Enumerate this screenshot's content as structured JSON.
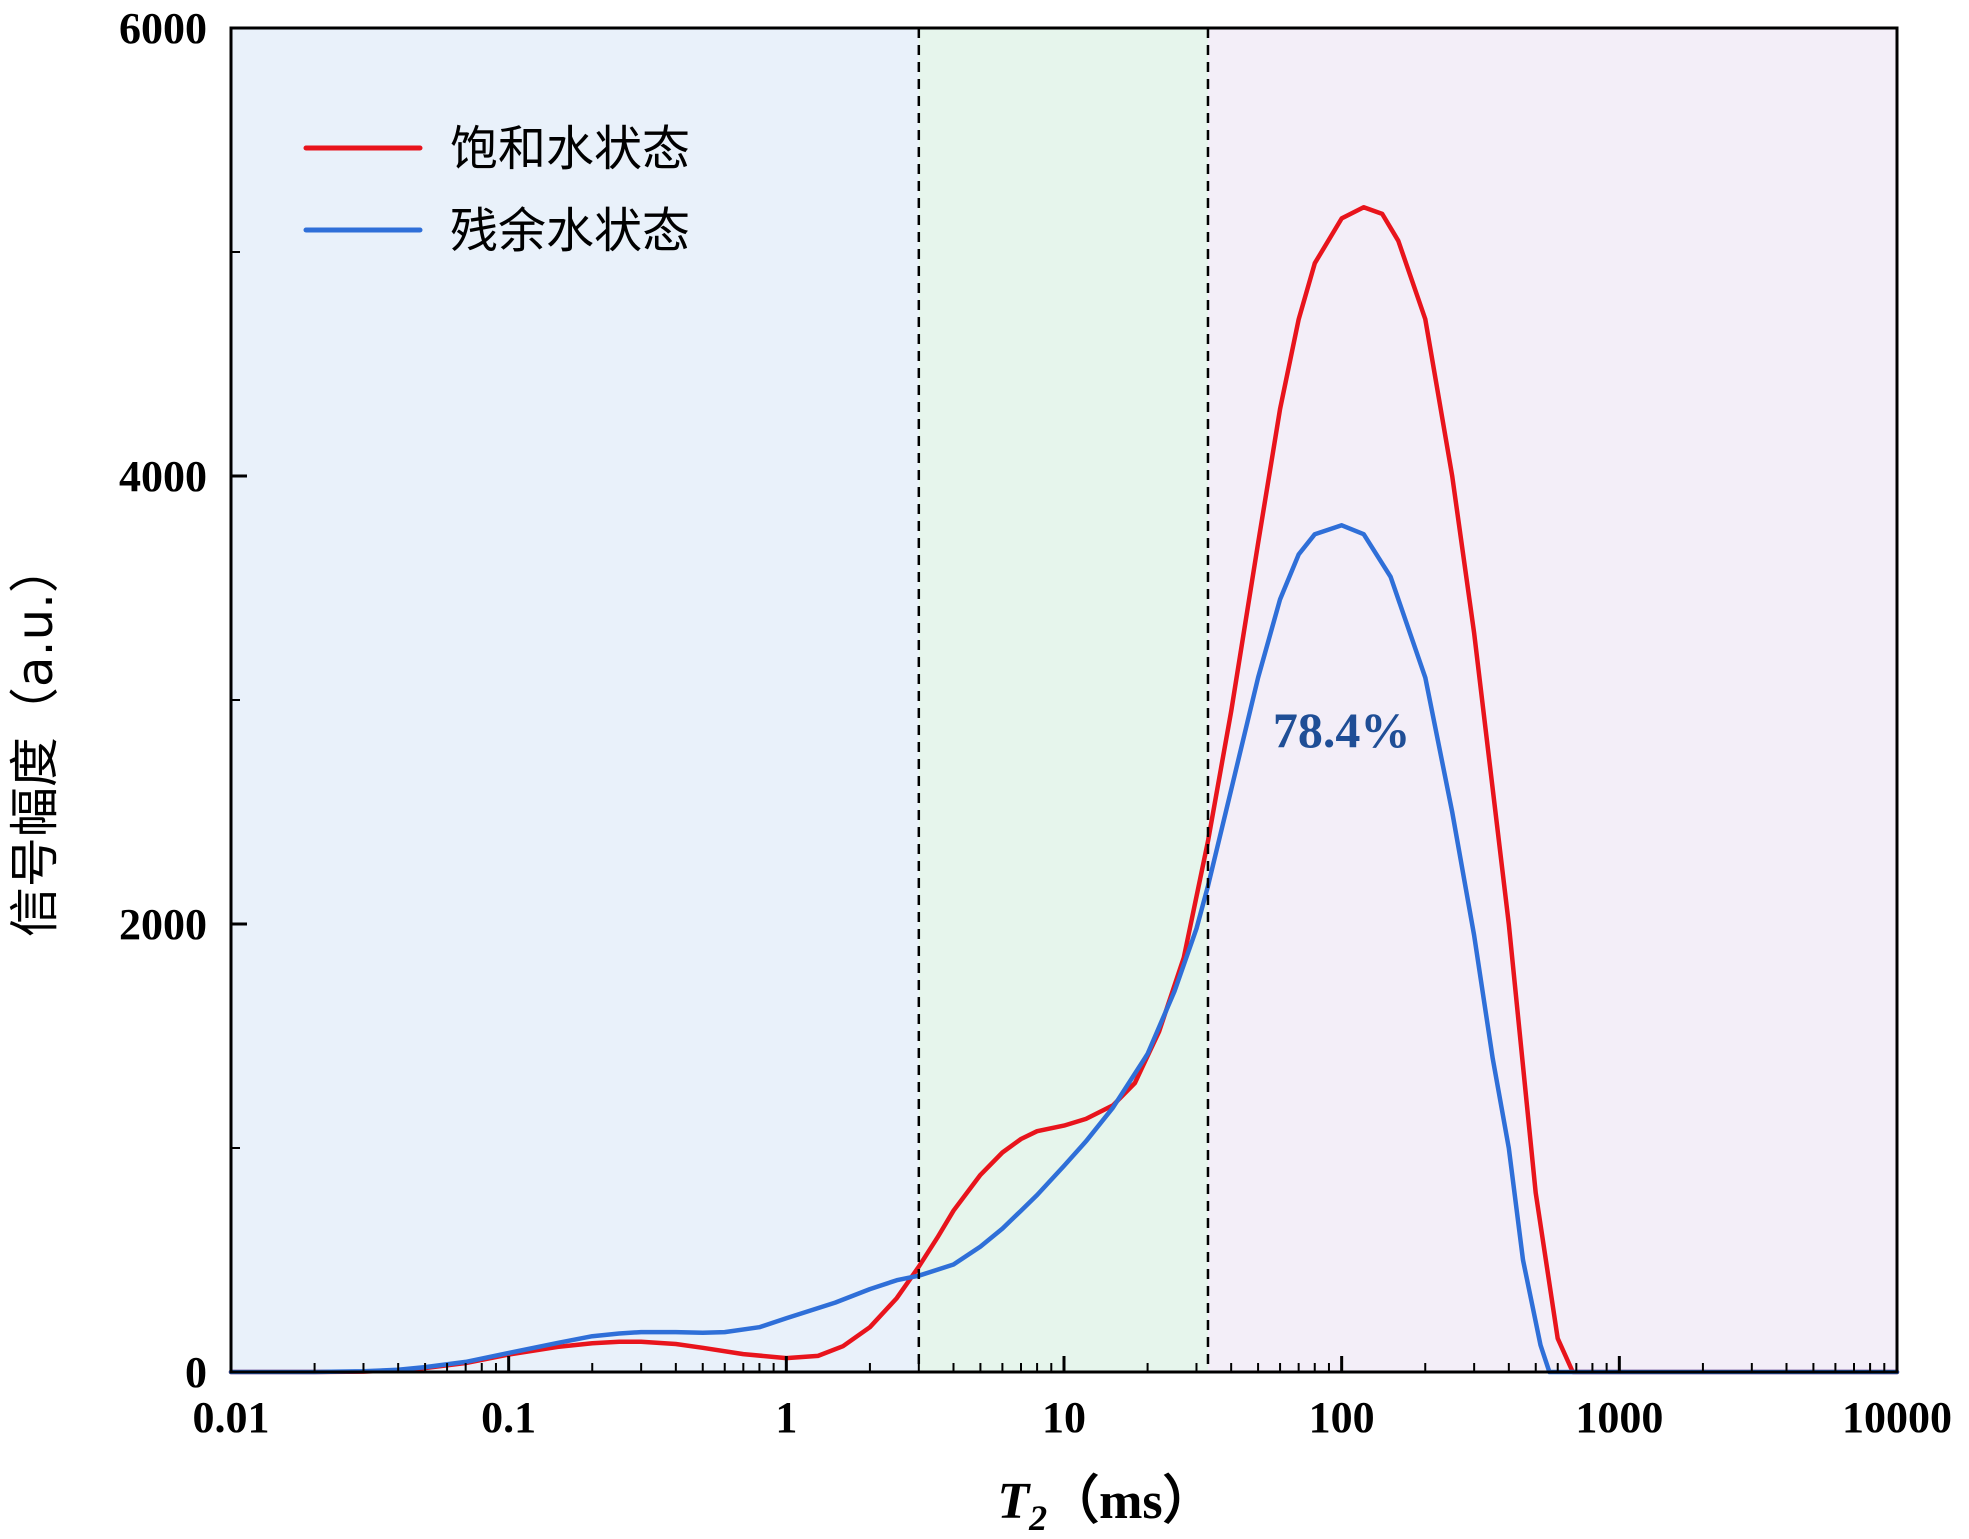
{
  "chart_data": {
    "type": "line",
    "title": "",
    "xlabel": "T2（ms）",
    "xlabel_main": "T",
    "xlabel_sub": "2",
    "xlabel_unit": "（ms）",
    "ylabel": "信号幅度（a.u.）",
    "xscale": "log",
    "xlim": [
      0.01,
      10000
    ],
    "ylim": [
      0,
      6000
    ],
    "x_ticks": [
      0.01,
      0.1,
      1,
      10,
      100,
      1000,
      10000
    ],
    "x_tick_labels": [
      "0.01",
      "0.1",
      "1",
      "10",
      "100",
      "1000",
      "10000"
    ],
    "y_ticks": [
      0,
      2000,
      4000,
      6000
    ],
    "y_tick_labels": [
      "0",
      "2000",
      "4000",
      "6000"
    ],
    "y_minor_ticks": [
      1000,
      3000,
      5000
    ],
    "grid": false,
    "legend_position": "top-left",
    "regions": [
      {
        "from": 0.01,
        "to": 3,
        "color": "#e9f1fa"
      },
      {
        "from": 3,
        "to": 33,
        "color": "#e6f5ec"
      },
      {
        "from": 33,
        "to": 10000,
        "color": "#f3eef8"
      }
    ],
    "vlines": [
      3,
      33
    ],
    "annotation": {
      "text": "78.4%",
      "x": 100,
      "y": 2870,
      "color": "#1f4e96"
    },
    "series": [
      {
        "name": "饱和水状态",
        "color": "#e8141c",
        "points": [
          [
            0.01,
            0
          ],
          [
            0.02,
            0
          ],
          [
            0.03,
            2
          ],
          [
            0.04,
            8
          ],
          [
            0.05,
            18
          ],
          [
            0.07,
            40
          ],
          [
            0.1,
            78
          ],
          [
            0.15,
            112
          ],
          [
            0.2,
            128
          ],
          [
            0.25,
            135
          ],
          [
            0.3,
            135
          ],
          [
            0.4,
            125
          ],
          [
            0.5,
            108
          ],
          [
            0.7,
            80
          ],
          [
            1,
            62
          ],
          [
            1.3,
            72
          ],
          [
            1.6,
            115
          ],
          [
            2,
            200
          ],
          [
            2.5,
            330
          ],
          [
            3,
            470
          ],
          [
            3.5,
            600
          ],
          [
            4,
            720
          ],
          [
            5,
            880
          ],
          [
            6,
            980
          ],
          [
            7,
            1040
          ],
          [
            8,
            1075
          ],
          [
            10,
            1100
          ],
          [
            12,
            1130
          ],
          [
            15,
            1190
          ],
          [
            18,
            1290
          ],
          [
            22,
            1520
          ],
          [
            27,
            1850
          ],
          [
            33,
            2370
          ],
          [
            40,
            2950
          ],
          [
            50,
            3700
          ],
          [
            60,
            4300
          ],
          [
            70,
            4700
          ],
          [
            80,
            4950
          ],
          [
            100,
            5150
          ],
          [
            120,
            5200
          ],
          [
            140,
            5170
          ],
          [
            160,
            5050
          ],
          [
            200,
            4700
          ],
          [
            250,
            4000
          ],
          [
            300,
            3300
          ],
          [
            400,
            2000
          ],
          [
            500,
            800
          ],
          [
            600,
            150
          ],
          [
            680,
            0
          ],
          [
            1000,
            0
          ],
          [
            10000,
            0
          ]
        ]
      },
      {
        "name": "残余水状态",
        "color": "#2f6fd8",
        "points": [
          [
            0.01,
            0
          ],
          [
            0.02,
            0
          ],
          [
            0.03,
            3
          ],
          [
            0.04,
            10
          ],
          [
            0.05,
            22
          ],
          [
            0.07,
            45
          ],
          [
            0.1,
            85
          ],
          [
            0.15,
            130
          ],
          [
            0.2,
            160
          ],
          [
            0.25,
            172
          ],
          [
            0.3,
            178
          ],
          [
            0.4,
            178
          ],
          [
            0.5,
            175
          ],
          [
            0.6,
            178
          ],
          [
            0.8,
            200
          ],
          [
            1,
            240
          ],
          [
            1.5,
            310
          ],
          [
            2,
            370
          ],
          [
            2.5,
            410
          ],
          [
            3,
            430
          ],
          [
            4,
            480
          ],
          [
            5,
            560
          ],
          [
            6,
            640
          ],
          [
            7,
            720
          ],
          [
            8,
            790
          ],
          [
            10,
            920
          ],
          [
            12,
            1030
          ],
          [
            15,
            1180
          ],
          [
            20,
            1420
          ],
          [
            25,
            1700
          ],
          [
            30,
            1980
          ],
          [
            33,
            2170
          ],
          [
            40,
            2600
          ],
          [
            50,
            3100
          ],
          [
            60,
            3450
          ],
          [
            70,
            3650
          ],
          [
            80,
            3740
          ],
          [
            100,
            3780
          ],
          [
            120,
            3740
          ],
          [
            150,
            3550
          ],
          [
            200,
            3100
          ],
          [
            250,
            2500
          ],
          [
            300,
            1950
          ],
          [
            350,
            1400
          ],
          [
            400,
            1000
          ],
          [
            450,
            500
          ],
          [
            520,
            120
          ],
          [
            560,
            0
          ],
          [
            1000,
            0
          ],
          [
            10000,
            0
          ]
        ]
      }
    ]
  }
}
